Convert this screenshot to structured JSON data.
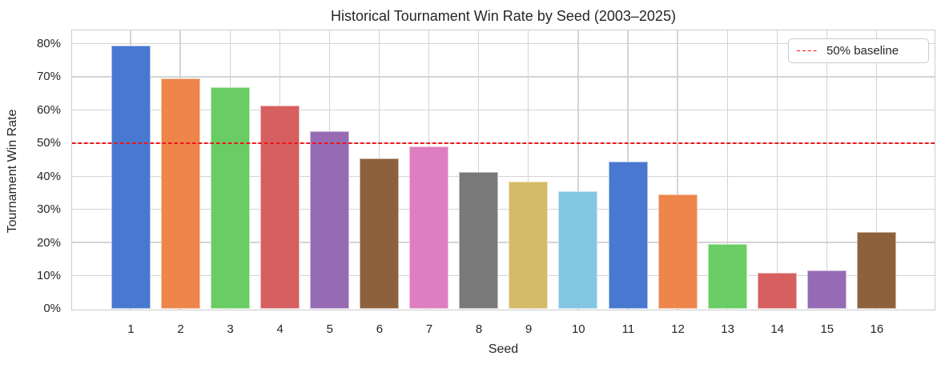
{
  "figure": {
    "background": "#ffffff",
    "text_color": "#262626",
    "grid_color": "#cccccc"
  },
  "legend": {
    "label": "50% baseline",
    "line_color": "#ff0000",
    "line_style": "dashed",
    "position": "upper right"
  },
  "chart_data": {
    "type": "bar",
    "title": "Historical Tournament Win Rate by Seed (2003–2025)",
    "xlabel": "Seed",
    "ylabel": "Tournament Win Rate",
    "categories": [
      "1",
      "2",
      "3",
      "4",
      "5",
      "6",
      "7",
      "8",
      "9",
      "10",
      "11",
      "12",
      "13",
      "14",
      "15",
      "16"
    ],
    "values": [
      79.4,
      69.4,
      66.8,
      61.2,
      53.5,
      45.5,
      49.0,
      41.2,
      38.5,
      35.6,
      44.5,
      34.5,
      19.6,
      10.9,
      11.6,
      23.1
    ],
    "unit": "%",
    "ylim": [
      0,
      84
    ],
    "ytick_step": 10,
    "ytick_labels": [
      "0%",
      "10%",
      "20%",
      "30%",
      "40%",
      "50%",
      "60%",
      "70%",
      "80%"
    ],
    "grid": true,
    "baseline": {
      "value": 50,
      "label": "50% baseline",
      "color": "#ff0000",
      "style": "dashed"
    },
    "bar_colors": [
      "#4878d0",
      "#ee854a",
      "#6acc64",
      "#d65f5f",
      "#956cb4",
      "#8c613c",
      "#dc7ec0",
      "#797979",
      "#d5bb67",
      "#82c6e2",
      "#4878d0",
      "#ee854a",
      "#6acc64",
      "#d65f5f",
      "#956cb4",
      "#8c613c"
    ]
  }
}
